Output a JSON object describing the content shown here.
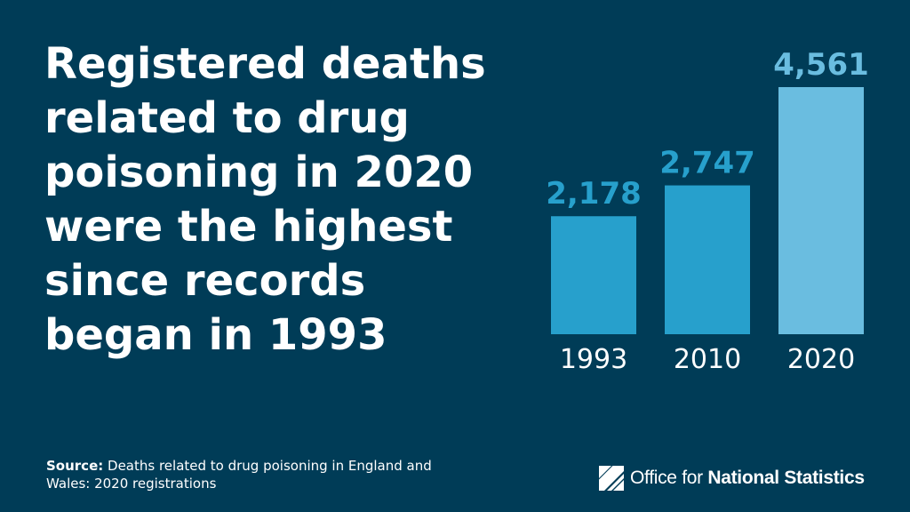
{
  "headline": [
    "Registered deaths",
    "related to drug",
    "poisoning in 2020",
    "were the highest",
    "since records",
    "began in 1993"
  ],
  "source": {
    "label": "Source:",
    "text": " Deaths related to drug poisoning in England and Wales: 2020 registrations"
  },
  "logo": {
    "prefix": "Office for ",
    "bold": "National Statistics",
    "icon": "ons-logo-icon"
  },
  "colors": {
    "background": "#003c57",
    "bar_1993": "#27a0cc",
    "bar_2010": "#27a0cc",
    "bar_2020": "#6abde0",
    "label_1993": "#27a0cc",
    "label_2010": "#27a0cc",
    "label_2020": "#6abde0"
  },
  "chart_data": {
    "type": "bar",
    "categories": [
      "1993",
      "2010",
      "2020"
    ],
    "values": [
      2178,
      2747,
      4561
    ],
    "value_labels": [
      "2,178",
      "2,747",
      "4,561"
    ],
    "title": "",
    "xlabel": "",
    "ylabel": "",
    "ylim": [
      0,
      4561
    ],
    "grid": false,
    "legend": "none"
  }
}
